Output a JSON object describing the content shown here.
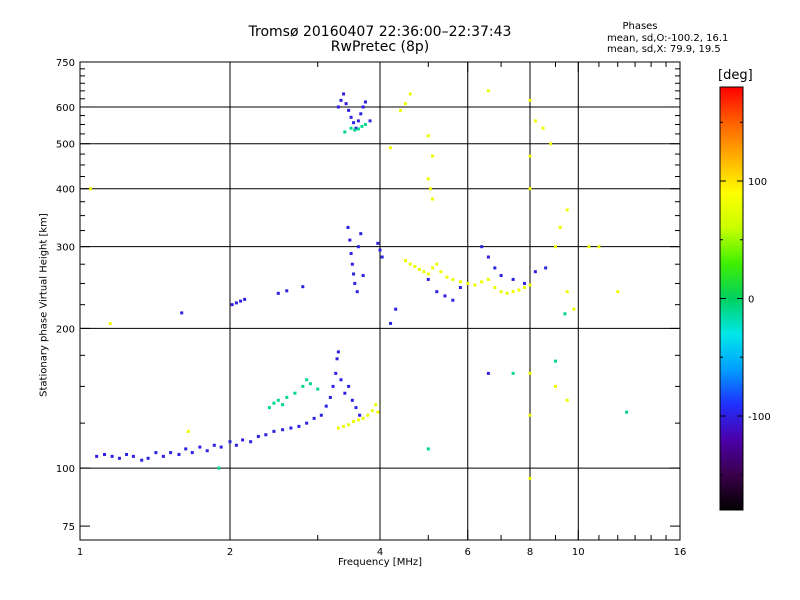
{
  "title_line1": "Tromsø 20160407 22:36:00–22:37:43",
  "title_line2": "RwPretec (8p)",
  "legend": {
    "heading": "Phases",
    "line1": "mean, sd,O:-100.2, 16.1",
    "line2": "mean, sd,X:  79.9, 19.5"
  },
  "colorbar": {
    "unit": "[deg]",
    "ticks": [
      {
        "value": 100,
        "label": "100"
      },
      {
        "value": 0,
        "label": "0"
      },
      {
        "value": -100,
        "label": "-100"
      }
    ],
    "range": [
      -180,
      180
    ],
    "stops": [
      "#000000",
      "#3a004a",
      "#4b00aa",
      "#2030ff",
      "#00a0ff",
      "#00e8e8",
      "#00d060",
      "#40f000",
      "#c8ff00",
      "#ffff00",
      "#ffb000",
      "#ff6000",
      "#ff0000"
    ]
  },
  "chart_data": {
    "type": "scatter",
    "x_scale": "log",
    "y_scale": "log",
    "xlim": [
      1,
      16
    ],
    "ylim": [
      70,
      750
    ],
    "xlabel": "Frequency [MHz]",
    "ylabel": "Stationary phase Virtual Height [km]",
    "x_ticks": [
      {
        "v": 1,
        "l": "1"
      },
      {
        "v": 2,
        "l": "2"
      },
      {
        "v": 4,
        "l": "4"
      },
      {
        "v": 6,
        "l": "6"
      },
      {
        "v": 8,
        "l": "8"
      },
      {
        "v": 10,
        "l": "10"
      },
      {
        "v": 16,
        "l": "16"
      }
    ],
    "y_ticks": [
      {
        "v": 75,
        "l": "75"
      },
      {
        "v": 100,
        "l": "100"
      },
      {
        "v": 200,
        "l": "200"
      },
      {
        "v": 300,
        "l": "300"
      },
      {
        "v": 400,
        "l": "400"
      },
      {
        "v": 500,
        "l": "500"
      },
      {
        "v": 600,
        "l": "600"
      },
      {
        "v": 750,
        "l": "750"
      }
    ],
    "x_grid": [
      2,
      4,
      6,
      8,
      10
    ],
    "y_grid": [
      100,
      200,
      300,
      400,
      500,
      600
    ],
    "grid": true,
    "series": [
      {
        "name": "O",
        "phase": -100,
        "points": [
          [
            1.08,
            106
          ],
          [
            1.12,
            107
          ],
          [
            1.16,
            106
          ],
          [
            1.2,
            105
          ],
          [
            1.24,
            107
          ],
          [
            1.28,
            106
          ],
          [
            1.33,
            104
          ],
          [
            1.37,
            105
          ],
          [
            1.42,
            108
          ],
          [
            1.47,
            106
          ],
          [
            1.52,
            108
          ],
          [
            1.58,
            107
          ],
          [
            1.63,
            110
          ],
          [
            1.68,
            108
          ],
          [
            1.74,
            111
          ],
          [
            1.8,
            109
          ],
          [
            1.86,
            112
          ],
          [
            1.92,
            111
          ],
          [
            2.0,
            114
          ],
          [
            2.06,
            112
          ],
          [
            2.12,
            115
          ],
          [
            2.2,
            114
          ],
          [
            2.28,
            117
          ],
          [
            2.36,
            118
          ],
          [
            2.45,
            120
          ],
          [
            2.55,
            121
          ],
          [
            2.65,
            122
          ],
          [
            2.75,
            123
          ],
          [
            2.85,
            125
          ],
          [
            2.95,
            128
          ],
          [
            3.05,
            130
          ],
          [
            3.12,
            136
          ],
          [
            3.18,
            142
          ],
          [
            3.22,
            150
          ],
          [
            3.26,
            160
          ],
          [
            3.28,
            172
          ],
          [
            3.3,
            178
          ],
          [
            3.34,
            155
          ],
          [
            3.4,
            145
          ],
          [
            3.46,
            150
          ],
          [
            3.52,
            140
          ],
          [
            3.58,
            135
          ],
          [
            3.64,
            130
          ],
          [
            2.02,
            225
          ],
          [
            2.06,
            227
          ],
          [
            2.1,
            229
          ],
          [
            2.14,
            231
          ],
          [
            2.5,
            238
          ],
          [
            2.6,
            241
          ],
          [
            2.8,
            246
          ],
          [
            3.3,
            600
          ],
          [
            3.34,
            620
          ],
          [
            3.38,
            640
          ],
          [
            3.42,
            610
          ],
          [
            3.46,
            590
          ],
          [
            3.5,
            570
          ],
          [
            3.54,
            555
          ],
          [
            3.58,
            540
          ],
          [
            3.62,
            560
          ],
          [
            3.66,
            580
          ],
          [
            3.7,
            600
          ],
          [
            3.74,
            615
          ],
          [
            3.82,
            560
          ],
          [
            3.45,
            330
          ],
          [
            3.48,
            310
          ],
          [
            3.5,
            290
          ],
          [
            3.52,
            275
          ],
          [
            3.54,
            262
          ],
          [
            3.56,
            250
          ],
          [
            3.6,
            240
          ],
          [
            3.62,
            300
          ],
          [
            3.66,
            320
          ],
          [
            3.7,
            260
          ],
          [
            3.96,
            305
          ],
          [
            4.0,
            295
          ],
          [
            4.04,
            285
          ],
          [
            5.0,
            255
          ],
          [
            5.2,
            240
          ],
          [
            5.4,
            235
          ],
          [
            5.6,
            230
          ],
          [
            5.8,
            245
          ],
          [
            6.4,
            300
          ],
          [
            6.6,
            285
          ],
          [
            6.8,
            270
          ],
          [
            7.0,
            260
          ],
          [
            7.4,
            255
          ],
          [
            7.8,
            250
          ],
          [
            8.2,
            265
          ],
          [
            8.6,
            270
          ],
          [
            4.3,
            220
          ],
          [
            4.2,
            205
          ],
          [
            6.6,
            160
          ],
          [
            1.6,
            216
          ]
        ]
      },
      {
        "name": "X",
        "phase": 80,
        "points": [
          [
            3.3,
            122
          ],
          [
            3.38,
            123
          ],
          [
            3.46,
            124
          ],
          [
            3.54,
            126
          ],
          [
            3.62,
            127
          ],
          [
            3.7,
            128
          ],
          [
            3.78,
            130
          ],
          [
            3.86,
            133
          ],
          [
            3.92,
            137
          ],
          [
            3.96,
            132
          ],
          [
            4.5,
            280
          ],
          [
            4.6,
            275
          ],
          [
            4.7,
            272
          ],
          [
            4.8,
            268
          ],
          [
            4.9,
            265
          ],
          [
            5.0,
            262
          ],
          [
            5.1,
            270
          ],
          [
            5.2,
            275
          ],
          [
            5.3,
            265
          ],
          [
            5.45,
            258
          ],
          [
            5.6,
            255
          ],
          [
            5.8,
            252
          ],
          [
            6.0,
            250
          ],
          [
            6.2,
            248
          ],
          [
            6.4,
            252
          ],
          [
            6.6,
            255
          ],
          [
            6.8,
            245
          ],
          [
            7.0,
            240
          ],
          [
            7.2,
            238
          ],
          [
            7.4,
            240
          ],
          [
            7.6,
            242
          ],
          [
            7.8,
            245
          ],
          [
            8.0,
            248
          ],
          [
            5.0,
            420
          ],
          [
            5.05,
            400
          ],
          [
            5.1,
            380
          ],
          [
            4.6,
            640
          ],
          [
            4.5,
            610
          ],
          [
            4.4,
            590
          ],
          [
            5.0,
            520
          ],
          [
            5.1,
            470
          ],
          [
            8.0,
            620
          ],
          [
            8.2,
            560
          ],
          [
            8.5,
            540
          ],
          [
            8.8,
            500
          ],
          [
            9.5,
            360
          ],
          [
            9.2,
            330
          ],
          [
            9.0,
            300
          ],
          [
            10.5,
            300
          ],
          [
            11.0,
            300
          ],
          [
            9.5,
            240
          ],
          [
            9.8,
            220
          ],
          [
            8.0,
            470
          ],
          [
            8.0,
            400
          ],
          [
            8.0,
            160
          ],
          [
            8.0,
            130
          ],
          [
            8.0,
            95
          ],
          [
            9.0,
            150
          ],
          [
            9.5,
            140
          ],
          [
            4.2,
            490
          ],
          [
            1.05,
            400
          ],
          [
            1.15,
            205
          ],
          [
            1.65,
            120
          ],
          [
            12.0,
            240
          ],
          [
            6.6,
            650
          ]
        ]
      },
      {
        "name": "other",
        "phase": -10,
        "points": [
          [
            2.4,
            135
          ],
          [
            2.45,
            138
          ],
          [
            2.5,
            140
          ],
          [
            2.55,
            137
          ],
          [
            2.6,
            142
          ],
          [
            2.7,
            145
          ],
          [
            2.8,
            150
          ],
          [
            2.85,
            155
          ],
          [
            2.9,
            152
          ],
          [
            3.0,
            148
          ],
          [
            3.5,
            540
          ],
          [
            3.56,
            535
          ],
          [
            3.62,
            538
          ],
          [
            3.68,
            545
          ],
          [
            3.74,
            550
          ],
          [
            3.4,
            530
          ],
          [
            5.0,
            110
          ],
          [
            7.4,
            160
          ],
          [
            9.0,
            170
          ],
          [
            9.4,
            215
          ],
          [
            12.5,
            132
          ],
          [
            1.9,
            100
          ]
        ]
      }
    ]
  }
}
